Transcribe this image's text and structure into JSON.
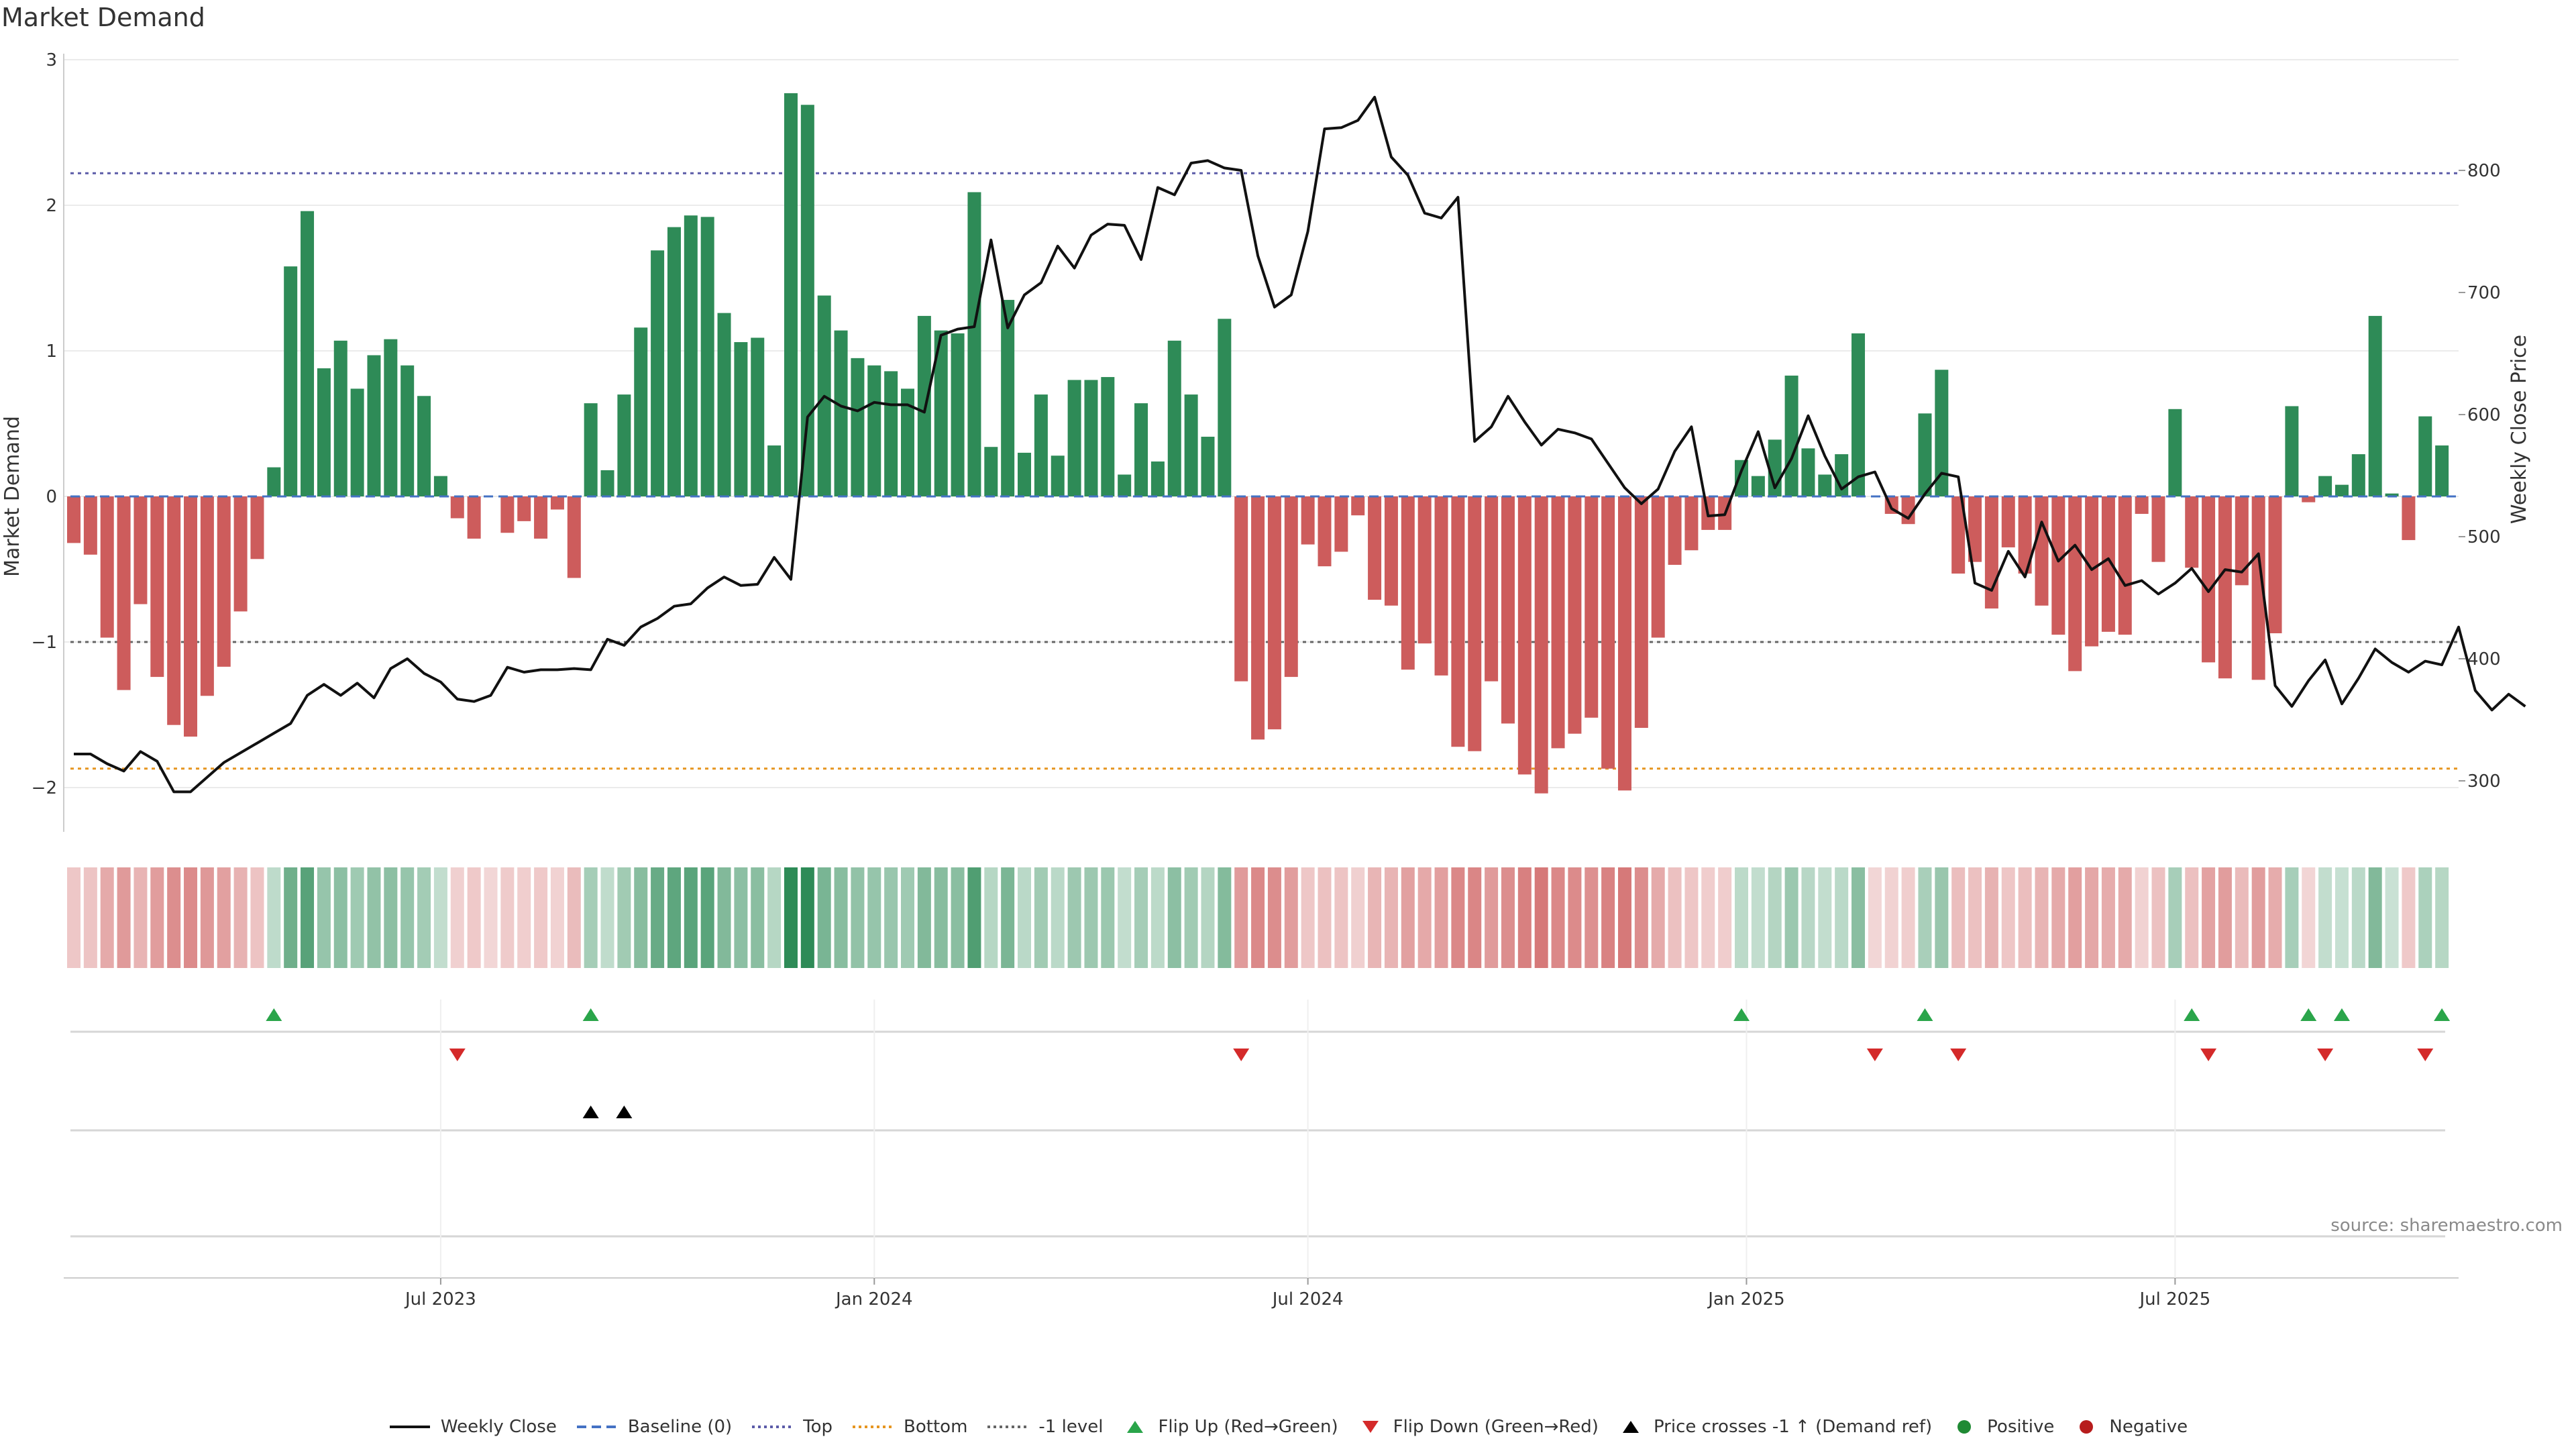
{
  "chart_data": {
    "type": "bar",
    "title": "Market Demand",
    "ylabel": "Market Demand",
    "y2label": "Weekly Close Price",
    "ylim": [
      -2.3,
      3.0
    ],
    "y_ticks": [
      3,
      2,
      1,
      0,
      -1,
      -2
    ],
    "y2lim": [
      278,
      888
    ],
    "y2_ticks": [
      800,
      700,
      600,
      500,
      400,
      300
    ],
    "x_tick_labels": [
      "Jul 2023",
      "Jan 2024",
      "Jul 2024",
      "Jan 2025",
      "Jul 2025"
    ],
    "x_tick_weeks": [
      22,
      48,
      74,
      100.3,
      126
    ],
    "reference_lines": {
      "top": 2.22,
      "bottom": -1.87,
      "minus_one": -1.0,
      "baseline": 0
    },
    "series": [
      {
        "name": "Market Demand",
        "values": [
          -0.32,
          -0.4,
          -0.97,
          -1.33,
          -0.74,
          -1.24,
          -1.57,
          -1.65,
          -1.37,
          -1.17,
          -0.79,
          -0.43,
          0.2,
          1.58,
          1.96,
          0.88,
          1.07,
          0.74,
          0.97,
          1.08,
          0.9,
          0.69,
          0.14,
          -0.15,
          -0.29,
          0,
          -0.25,
          -0.17,
          -0.29,
          -0.09,
          -0.56,
          0.64,
          0.18,
          0.7,
          1.16,
          1.69,
          1.85,
          1.93,
          1.92,
          1.26,
          1.06,
          1.09,
          0.35,
          2.77,
          2.69,
          1.38,
          1.14,
          0.95,
          0.9,
          0.86,
          0.74,
          1.24,
          1.14,
          1.12,
          2.09,
          0.34,
          1.35,
          0.3,
          0.7,
          0.28,
          0.8,
          0.8,
          0.82,
          0.15,
          0.64,
          0.24,
          1.07,
          0.7,
          0.41,
          1.22,
          -1.27,
          -1.67,
          -1.6,
          -1.24,
          -0.33,
          -0.48,
          -0.38,
          -0.13,
          -0.71,
          -0.75,
          -1.19,
          -1.01,
          -1.23,
          -1.72,
          -1.75,
          -1.27,
          -1.56,
          -1.91,
          -2.04,
          -1.73,
          -1.63,
          -1.52,
          -1.87,
          -2.02,
          -1.59,
          -0.97,
          -0.47,
          -0.37,
          -0.23,
          -0.23,
          0.25,
          0.14,
          0.39,
          0.83,
          0.33,
          0.15,
          0.29,
          1.12,
          0,
          -0.12,
          -0.19,
          0.57,
          0.87,
          -0.53,
          -0.45,
          -0.77,
          -0.35,
          -0.53,
          -0.75,
          -0.95,
          -1.2,
          -1.03,
          -0.93,
          -0.95,
          -0.12,
          -0.45,
          0.6,
          -0.49,
          -1.14,
          -1.25,
          -0.61,
          -1.26,
          -0.94,
          0.62,
          -0.04,
          0.14,
          0.08,
          0.29,
          1.24,
          0.02,
          -0.3,
          0.55,
          0.35
        ]
      },
      {
        "name": "Weekly Close",
        "values": [
          322,
          322,
          314,
          308,
          324,
          316,
          291,
          291,
          303,
          315,
          323,
          331,
          339,
          347,
          370,
          379,
          370,
          380,
          368,
          392,
          400,
          388,
          381,
          367,
          365,
          370,
          393,
          389,
          391,
          391,
          392,
          391,
          416,
          411,
          426,
          433,
          443,
          445,
          458,
          467,
          460,
          461,
          483,
          465,
          598,
          615,
          607,
          603,
          610,
          608,
          608,
          602,
          665,
          670,
          672,
          743,
          671,
          698,
          708,
          738,
          720,
          747,
          756,
          755,
          727,
          786,
          780,
          806,
          808,
          802,
          800,
          730,
          688,
          698,
          750,
          834,
          835,
          841,
          860,
          811,
          796,
          765,
          761,
          778,
          578,
          590,
          615,
          594,
          575,
          588,
          585,
          580,
          560,
          540,
          527,
          539,
          570,
          590,
          517,
          518,
          554,
          586,
          540,
          564,
          599,
          566,
          539,
          549,
          553,
          523,
          515,
          535,
          552,
          549,
          462,
          456,
          488,
          467,
          512,
          480,
          493,
          473,
          482,
          460,
          464,
          453,
          462,
          474,
          455,
          473,
          471,
          486,
          378,
          361,
          382,
          399,
          363,
          384,
          408,
          397,
          389,
          398,
          395,
          426,
          374,
          358,
          371,
          361
        ]
      }
    ],
    "flip_up_weeks": [
      12,
      31,
      100,
      111,
      127,
      134,
      136,
      142
    ],
    "flip_down_weeks": [
      23,
      70,
      108,
      113,
      128,
      135,
      141
    ],
    "price_cross_weeks": [
      31,
      33
    ],
    "source": "source: sharemaestro.com",
    "legend": [
      "Weekly Close",
      "Baseline (0)",
      "Top",
      "Bottom",
      "-1 level",
      "Flip Up (Red→Green)",
      "Flip Down (Green→Red)",
      "Price crosses -1 ↑ (Demand ref)",
      "Positive",
      "Negative"
    ],
    "colors": {
      "positive": "#2e8b57",
      "negative": "#cd5c5c",
      "price": "#111111",
      "baseline": "#4472c4",
      "top": "#5b5ba8",
      "bottom": "#e69520",
      "minus_one": "#666666",
      "flip_up": "#2aa54a",
      "flip_down": "#d42a2a",
      "cross": "#000000",
      "dot_pos": "#1f8a34",
      "dot_neg": "#b71c1c"
    }
  }
}
